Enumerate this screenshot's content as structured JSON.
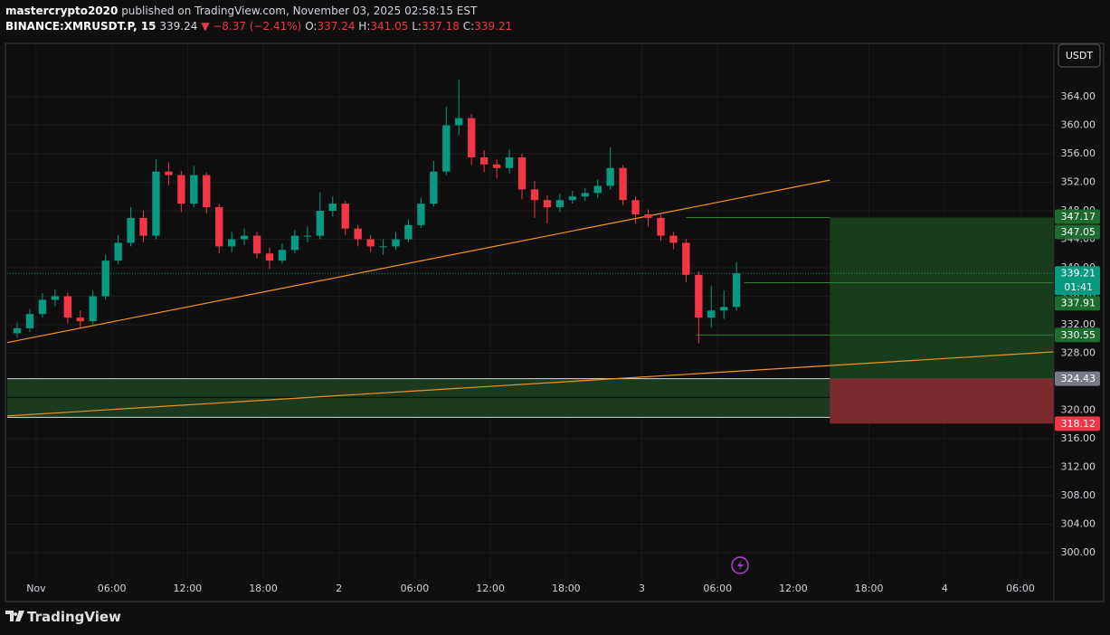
{
  "header": {
    "author": "mastercrypto2020",
    "published": "published on TradingView.com, November 03, 2025 02:58:15 EST",
    "symbol": "BINANCE:XMRUSDT.P, 15",
    "last": "339.24",
    "change": "▼ −8.37 (−2.41%)",
    "ohlc": [
      {
        "label": "O:",
        "value": "337.24"
      },
      {
        "label": "H:",
        "value": "341.05"
      },
      {
        "label": "L:",
        "value": "337.18"
      },
      {
        "label": "C:",
        "value": "339.21"
      }
    ]
  },
  "chart_data": {
    "type": "candlestick",
    "currency": "USDT",
    "x": [
      -2,
      -1,
      0,
      1,
      2,
      3,
      4,
      5,
      6,
      7,
      8,
      9,
      10,
      11,
      12,
      13,
      14,
      15,
      16,
      17,
      18,
      19,
      20,
      21,
      22,
      23,
      24,
      25,
      26,
      27,
      28,
      29,
      30,
      31,
      32,
      33,
      34,
      35,
      36,
      37,
      38,
      39,
      40,
      41,
      42,
      43,
      44,
      45,
      46,
      47,
      48,
      49,
      50,
      51,
      52,
      53,
      54,
      55
    ],
    "open": [
      330.8,
      331.5,
      333.5,
      335.5,
      336,
      333,
      332.5,
      336,
      341,
      343.5,
      347,
      344.5,
      353.5,
      353,
      349,
      353,
      348.5,
      343,
      344,
      344.5,
      342,
      341,
      342.5,
      344.5,
      344.5,
      348,
      349,
      345.5,
      344,
      343,
      343,
      344,
      346,
      349,
      353.5,
      360,
      361,
      355.5,
      354.5,
      354,
      355.5,
      351,
      349.5,
      348.5,
      349.5,
      350,
      350.5,
      351.5,
      354,
      349.5,
      347.5,
      347,
      344.5,
      343.5,
      339,
      333,
      334,
      334.5
    ],
    "high": [
      332.3,
      334.2,
      336.4,
      337,
      336.5,
      334,
      336.8,
      341.8,
      344.6,
      348.5,
      348,
      355.2,
      354.8,
      353.6,
      354.3,
      353.4,
      349,
      345,
      345.5,
      345,
      342.8,
      343.4,
      345.3,
      345.8,
      350.6,
      350,
      349.4,
      346,
      344.6,
      344,
      345,
      346.8,
      349.8,
      355,
      362.6,
      366.4,
      361.6,
      356.5,
      355.2,
      356.6,
      356,
      352.2,
      350.2,
      350.4,
      350.8,
      351.2,
      352.4,
      356.9,
      354.4,
      350,
      348.2,
      347.4,
      345,
      344,
      339.5,
      337.4,
      336.8,
      340.8
    ],
    "low": [
      330.2,
      331,
      333,
      334.6,
      332.2,
      331.6,
      332,
      335.5,
      340.5,
      343,
      343.6,
      344,
      351.6,
      347.8,
      348.5,
      347.6,
      342,
      342.2,
      343.2,
      341.3,
      339.8,
      340.6,
      342,
      343.6,
      344,
      347.2,
      344.6,
      343,
      342.2,
      341.8,
      342.5,
      343.6,
      345.6,
      348.6,
      353,
      358.6,
      354.4,
      353.4,
      352.6,
      353.2,
      349.6,
      347,
      346.2,
      347.8,
      349,
      349.4,
      349.8,
      351,
      348.8,
      346.2,
      345.8,
      343.8,
      342.6,
      338,
      329.4,
      331.6,
      332.8,
      334
    ],
    "close": [
      331.5,
      333.5,
      335.5,
      336,
      333,
      332.5,
      336,
      341,
      343.5,
      347,
      344.5,
      353.5,
      353,
      349,
      353,
      348.5,
      343,
      344,
      344.5,
      342,
      341,
      342.5,
      344.5,
      344.5,
      348,
      349,
      345.5,
      344,
      343,
      343,
      344,
      346,
      349,
      353.5,
      360,
      361,
      355.5,
      354.5,
      354,
      355.5,
      351,
      349.5,
      348.5,
      349.5,
      350,
      350.5,
      351.5,
      354,
      349.5,
      347.5,
      347,
      344.5,
      343.5,
      339,
      333,
      334,
      334.5,
      339.21
    ],
    "up_color": "#089981",
    "down_color": "#f23645",
    "xlim": [
      -2.29,
      80.65
    ],
    "xticks": [
      {
        "value": 0,
        "label": "Nov"
      },
      {
        "value": 6,
        "label": "06:00"
      },
      {
        "value": 12,
        "label": "12:00"
      },
      {
        "value": 18,
        "label": "18:00"
      },
      {
        "value": 24,
        "label": "2"
      },
      {
        "value": 30,
        "label": "06:00"
      },
      {
        "value": 36,
        "label": "12:00"
      },
      {
        "value": 42,
        "label": "18:00"
      },
      {
        "value": 48,
        "label": "3"
      },
      {
        "value": 54,
        "label": "06:00"
      },
      {
        "value": 60,
        "label": "12:00"
      },
      {
        "value": 66,
        "label": "18:00"
      },
      {
        "value": 72,
        "label": "4"
      },
      {
        "value": 78,
        "label": "06:00"
      }
    ],
    "ylim": [
      296.32,
      371.49
    ],
    "yticks": [
      {
        "value": 300,
        "label": "300.00"
      },
      {
        "value": 304,
        "label": "304.00"
      },
      {
        "value": 308,
        "label": "308.00"
      },
      {
        "value": 312,
        "label": "312.00"
      },
      {
        "value": 316,
        "label": "316.00"
      },
      {
        "value": 320,
        "label": "320.00"
      },
      {
        "value": 324,
        "label": "324.00"
      },
      {
        "value": 328,
        "label": "328.00"
      },
      {
        "value": 332,
        "label": "332.00"
      },
      {
        "value": 336,
        "label": "336.00"
      },
      {
        "value": 340,
        "label": "340.00"
      },
      {
        "value": 344,
        "label": "344.00"
      },
      {
        "value": 348,
        "label": "348.00"
      },
      {
        "value": 352,
        "label": "352.00"
      },
      {
        "value": 356,
        "label": "356.00"
      },
      {
        "value": 360,
        "label": "360.00"
      },
      {
        "value": 364,
        "label": "364.00"
      }
    ],
    "grid": true,
    "trend_lines": [
      {
        "x": [
          -2.29,
          62.9
        ],
        "y": [
          329.5,
          352.3
        ],
        "color": "#f7931a"
      },
      {
        "x": [
          -2.29,
          80.65
        ],
        "y": [
          319.2,
          328.2
        ],
        "color": "#f7931a"
      }
    ],
    "zone": {
      "top": 324.43,
      "mid": 321.8,
      "bottom": 319.0,
      "color": "#1b3a1f"
    },
    "position": {
      "x": [
        62.9,
        80.65
      ],
      "entry": 324.43,
      "target": 347.05,
      "stop": 318.12,
      "profit_color": "#173d1c",
      "loss_color": "#7b2b2e"
    },
    "levels": [
      {
        "value": 347.05,
        "x": [
          51.5,
          62.9
        ]
      },
      {
        "value": 337.91,
        "x": [
          56.1,
          80.65
        ]
      },
      {
        "value": 330.55,
        "x": [
          52.3,
          80.65
        ]
      }
    ],
    "price_labels": [
      {
        "value": 347.17,
        "color": "#1e6b2e"
      },
      {
        "value": 347.05,
        "color": "#1e6b2e"
      },
      {
        "value": 339.21,
        "color": "#089981"
      },
      {
        "value": 337.91,
        "color": "#1e6b2e"
      },
      {
        "value": 330.55,
        "color": "#1e6b2e"
      },
      {
        "value": 324.43,
        "color": "#787b86"
      },
      {
        "value": 318.12,
        "color": "#f23645"
      }
    ],
    "countdown": "01:41"
  },
  "footer": {
    "brand": "TradingView"
  }
}
